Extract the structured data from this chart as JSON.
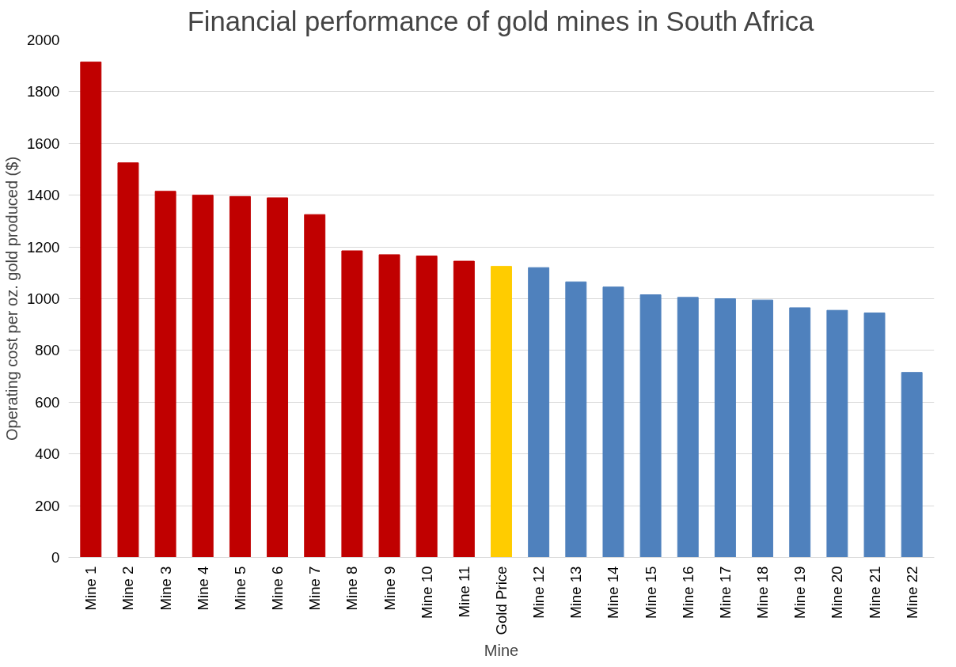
{
  "chart_data": {
    "type": "bar",
    "title": "Financial performance of gold mines in South Africa",
    "xlabel": "Mine",
    "ylabel": "Operating cost per oz. gold produced ($)",
    "categories": [
      "Mine 1",
      "Mine 2",
      "Mine 3",
      "Mine 4",
      "Mine 5",
      "Mine 6",
      "Mine 7",
      "Mine 8",
      "Mine 9",
      "Mine 10",
      "Mine 11",
      "Gold Price",
      "Mine 12",
      "Mine 13",
      "Mine 14",
      "Mine 15",
      "Mine 16",
      "Mine 17",
      "Mine 18",
      "Mine 19",
      "Mine 20",
      "Mine 21",
      "Mine 22"
    ],
    "values": [
      1915,
      1525,
      1415,
      1400,
      1395,
      1390,
      1325,
      1185,
      1170,
      1165,
      1145,
      1125,
      1120,
      1065,
      1045,
      1015,
      1005,
      1000,
      995,
      965,
      955,
      945,
      715
    ],
    "colors": [
      "#c00000",
      "#c00000",
      "#c00000",
      "#c00000",
      "#c00000",
      "#c00000",
      "#c00000",
      "#c00000",
      "#c00000",
      "#c00000",
      "#c00000",
      "#ffcc00",
      "#4f81bd",
      "#4f81bd",
      "#4f81bd",
      "#4f81bd",
      "#4f81bd",
      "#4f81bd",
      "#4f81bd",
      "#4f81bd",
      "#4f81bd",
      "#4f81bd",
      "#4f81bd"
    ],
    "ylim": [
      0,
      2000
    ],
    "yticks": [
      0,
      200,
      400,
      600,
      800,
      1000,
      1200,
      1400,
      1600,
      1800,
      2000
    ],
    "grid": "y"
  }
}
